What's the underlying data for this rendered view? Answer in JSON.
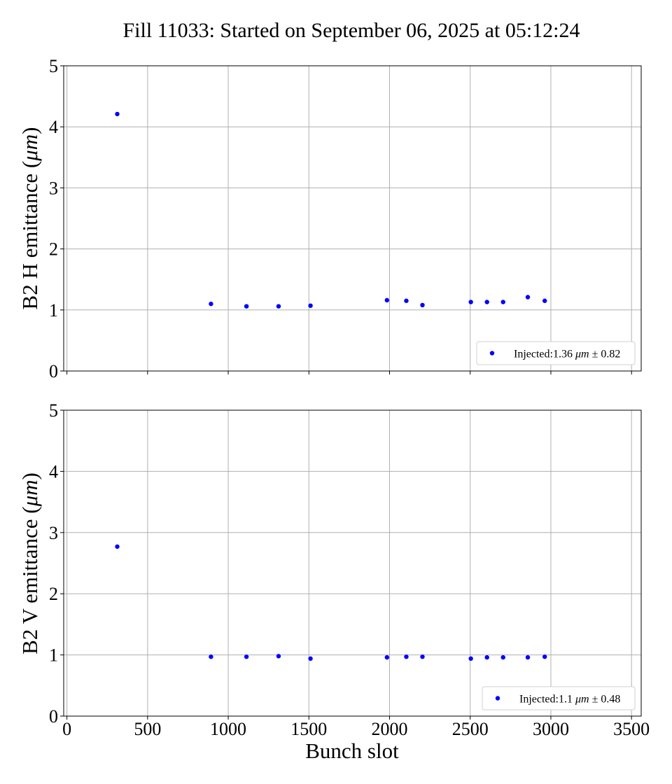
{
  "figure": {
    "title": "Fill 11033: Started on September 06, 2025 at 05:12:24",
    "xlabel": "Bunch slot"
  },
  "chart_data": [
    {
      "type": "scatter",
      "title": "Fill 11033: Started on September 06, 2025 at 05:12:24",
      "xlabel": "",
      "ylabel": "B2 H emittance (μm)",
      "xlim": [
        -20,
        3560
      ],
      "ylim": [
        0,
        5
      ],
      "xticks": [
        0,
        500,
        1000,
        1500,
        2000,
        2500,
        3000,
        3500
      ],
      "yticks": [
        0,
        1,
        2,
        3,
        4,
        5
      ],
      "show_xtick_labels": false,
      "grid": true,
      "legend_position": "lower-right",
      "series": [
        {
          "name": "Injected:1.36 μm ± 0.82",
          "color": "#0000ff",
          "x": [
            312,
            893,
            1113,
            1312,
            1510,
            1984,
            2104,
            2204,
            2504,
            2604,
            2704,
            2857,
            2962
          ],
          "y": [
            4.21,
            1.1,
            1.06,
            1.06,
            1.07,
            1.16,
            1.15,
            1.08,
            1.13,
            1.13,
            1.13,
            1.21,
            1.15
          ]
        }
      ]
    },
    {
      "type": "scatter",
      "title": "",
      "xlabel": "Bunch slot",
      "ylabel": "B2 V emittance (μm)",
      "xlim": [
        -20,
        3560
      ],
      "ylim": [
        0,
        5
      ],
      "xticks": [
        0,
        500,
        1000,
        1500,
        2000,
        2500,
        3000,
        3500
      ],
      "yticks": [
        0,
        1,
        2,
        3,
        4,
        5
      ],
      "show_xtick_labels": true,
      "grid": true,
      "legend_position": "lower-right",
      "series": [
        {
          "name": "Injected:1.1 μm ± 0.48",
          "color": "#0000ff",
          "x": [
            312,
            893,
            1113,
            1312,
            1510,
            1984,
            2104,
            2204,
            2504,
            2604,
            2704,
            2857,
            2962
          ],
          "y": [
            2.77,
            0.97,
            0.97,
            0.98,
            0.94,
            0.96,
            0.97,
            0.97,
            0.94,
            0.96,
            0.96,
            0.96,
            0.97
          ]
        }
      ]
    }
  ]
}
